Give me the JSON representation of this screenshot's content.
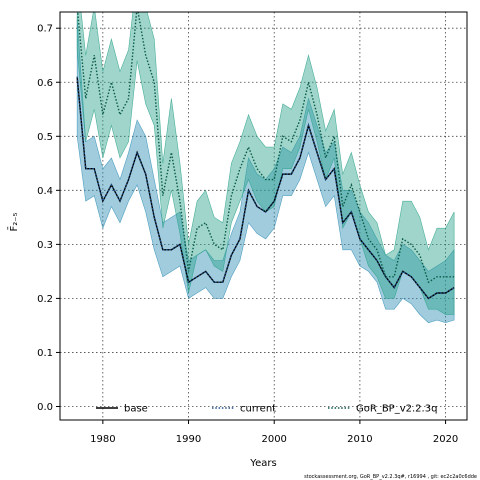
{
  "chart_data": {
    "type": "line",
    "xlabel": "Years",
    "ylabel": "F̄₂₋₅",
    "xlim": [
      1975,
      2022.5
    ],
    "ylim": [
      -0.025,
      0.73
    ],
    "xticks": [
      1980,
      1990,
      2000,
      2010,
      2020
    ],
    "yticks": [
      0.0,
      0.1,
      0.2,
      0.3,
      0.4,
      0.5,
      0.6,
      0.7
    ],
    "grid": true,
    "legend_position": "bottom",
    "footnote": "stockassessment.org, GoR_BP_v2.2.3q#, r16994 , git: ec2c2a0c6dde",
    "x": [
      1977,
      1978,
      1979,
      1980,
      1981,
      1982,
      1983,
      1984,
      1985,
      1986,
      1987,
      1988,
      1989,
      1990,
      1991,
      1992,
      1993,
      1994,
      1995,
      1996,
      1997,
      1998,
      1999,
      2000,
      2001,
      2002,
      2003,
      2004,
      2005,
      2006,
      2007,
      2008,
      2009,
      2010,
      2011,
      2012,
      2013,
      2014,
      2015,
      2016,
      2017,
      2018,
      2019,
      2020,
      2021
    ],
    "series": [
      {
        "name": "base",
        "color": "#000000",
        "style": "solid",
        "band_color": "#2f8fb5",
        "values": [
          0.61,
          0.44,
          0.44,
          0.38,
          0.41,
          0.38,
          0.42,
          0.47,
          0.43,
          0.35,
          0.29,
          0.29,
          0.3,
          0.23,
          0.24,
          0.25,
          0.23,
          0.23,
          0.28,
          0.31,
          0.4,
          0.37,
          0.36,
          0.38,
          0.43,
          0.43,
          0.46,
          0.52,
          0.47,
          0.42,
          0.44,
          0.34,
          0.36,
          0.31,
          0.29,
          0.27,
          0.24,
          0.22,
          0.25,
          0.24,
          0.22,
          0.2,
          0.21,
          0.21,
          0.22
        ],
        "lower": [
          0.5,
          0.38,
          0.39,
          0.33,
          0.37,
          0.34,
          0.38,
          0.41,
          0.36,
          0.29,
          0.24,
          0.25,
          0.26,
          0.2,
          0.21,
          0.22,
          0.2,
          0.2,
          0.24,
          0.27,
          0.34,
          0.32,
          0.31,
          0.33,
          0.39,
          0.39,
          0.42,
          0.47,
          0.42,
          0.37,
          0.39,
          0.29,
          0.29,
          0.26,
          0.25,
          0.23,
          0.18,
          0.18,
          0.2,
          0.19,
          0.17,
          0.155,
          0.16,
          0.155,
          0.16
        ],
        "upper": [
          0.72,
          0.49,
          0.5,
          0.44,
          0.46,
          0.42,
          0.47,
          0.53,
          0.5,
          0.42,
          0.34,
          0.35,
          0.36,
          0.27,
          0.28,
          0.29,
          0.27,
          0.27,
          0.32,
          0.36,
          0.46,
          0.43,
          0.42,
          0.44,
          0.48,
          0.47,
          0.5,
          0.57,
          0.52,
          0.47,
          0.49,
          0.4,
          0.4,
          0.36,
          0.34,
          0.31,
          0.28,
          0.27,
          0.3,
          0.29,
          0.27,
          0.25,
          0.26,
          0.27,
          0.29
        ]
      },
      {
        "name": "current",
        "color": "#1b4f8a",
        "style": "dotted",
        "values": [
          0.61,
          0.44,
          0.44,
          0.38,
          0.41,
          0.38,
          0.42,
          0.47,
          0.43,
          0.35,
          0.29,
          0.29,
          0.3,
          0.23,
          0.24,
          0.25,
          0.23,
          0.23,
          0.28,
          0.31,
          0.4,
          0.37,
          0.36,
          0.38,
          0.43,
          0.43,
          0.46,
          0.52,
          0.47,
          0.42,
          0.44,
          0.34,
          0.36,
          0.31,
          0.29,
          0.27,
          0.24,
          0.22,
          0.25,
          0.24,
          0.22,
          0.2,
          0.21,
          0.21,
          0.22
        ]
      },
      {
        "name": "GoR_BP_v2.2.3q",
        "color": "#0b5a4a",
        "style": "dotted",
        "band_color": "#2aa189",
        "values": [
          0.74,
          0.57,
          0.65,
          0.54,
          0.6,
          0.54,
          0.57,
          0.74,
          0.65,
          0.6,
          0.39,
          0.47,
          0.38,
          0.25,
          0.33,
          0.34,
          0.3,
          0.29,
          0.39,
          0.44,
          0.48,
          0.44,
          0.42,
          0.42,
          0.5,
          0.49,
          0.53,
          0.6,
          0.54,
          0.46,
          0.5,
          0.37,
          0.41,
          0.36,
          0.31,
          0.29,
          0.24,
          0.24,
          0.31,
          0.3,
          0.28,
          0.23,
          0.24,
          0.24,
          0.24
        ],
        "lower": [
          0.66,
          0.49,
          0.55,
          0.46,
          0.52,
          0.46,
          0.49,
          0.64,
          0.56,
          0.52,
          0.33,
          0.4,
          0.32,
          0.21,
          0.28,
          0.29,
          0.26,
          0.25,
          0.34,
          0.38,
          0.42,
          0.38,
          0.36,
          0.37,
          0.44,
          0.44,
          0.48,
          0.55,
          0.49,
          0.42,
          0.46,
          0.33,
          0.36,
          0.31,
          0.26,
          0.24,
          0.2,
          0.2,
          0.25,
          0.24,
          0.22,
          0.18,
          0.18,
          0.17,
          0.17
        ],
        "upper": [
          0.8,
          0.65,
          0.74,
          0.62,
          0.68,
          0.62,
          0.66,
          0.8,
          0.74,
          0.68,
          0.45,
          0.57,
          0.45,
          0.3,
          0.38,
          0.4,
          0.35,
          0.34,
          0.45,
          0.49,
          0.54,
          0.5,
          0.48,
          0.48,
          0.56,
          0.55,
          0.59,
          0.65,
          0.59,
          0.51,
          0.55,
          0.43,
          0.47,
          0.41,
          0.36,
          0.34,
          0.28,
          0.29,
          0.38,
          0.38,
          0.35,
          0.29,
          0.33,
          0.33,
          0.36
        ]
      }
    ]
  }
}
